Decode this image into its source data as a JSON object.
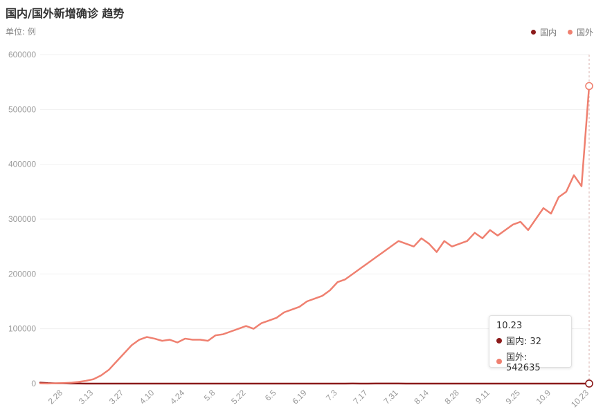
{
  "header": {
    "title": "国内/国外新增确诊 趋势",
    "unit_label": "单位: 例"
  },
  "legend": [
    {
      "name": "国内",
      "color": "#8b1a1a"
    },
    {
      "name": "国外",
      "color": "#ef8070"
    }
  ],
  "tooltip": {
    "date": "10.23",
    "rows": [
      {
        "label": "国内: 32",
        "color": "#8b1a1a"
      },
      {
        "label": "国外: 542635",
        "color": "#ef8070"
      }
    ]
  },
  "chart_data": {
    "type": "line",
    "title": "国内/国外新增确诊 趋势",
    "ylabel": "单位: 例",
    "ylim": [
      0,
      600000
    ],
    "y_ticks": [
      "0",
      "100000",
      "200000",
      "300000",
      "400000",
      "500000",
      "600000"
    ],
    "x_tick_labels": [
      "2.28",
      "3.13",
      "3.27",
      "4.10",
      "4.24",
      "5.8",
      "5.22",
      "6.5",
      "6.19",
      "7.3",
      "7.17",
      "7.31",
      "8.14",
      "8.28",
      "9.11",
      "9.25",
      "10.9",
      "10.23"
    ],
    "grid": true,
    "legend_position": "top-right",
    "x": [
      "2.18",
      "2.21",
      "2.24",
      "2.28",
      "3.2",
      "3.5",
      "3.9",
      "3.13",
      "3.16",
      "3.20",
      "3.23",
      "3.27",
      "3.30",
      "4.3",
      "4.6",
      "4.10",
      "4.13",
      "4.17",
      "4.20",
      "4.24",
      "4.27",
      "5.1",
      "5.4",
      "5.8",
      "5.11",
      "5.15",
      "5.18",
      "5.22",
      "5.25",
      "5.29",
      "6.1",
      "6.5",
      "6.8",
      "6.12",
      "6.15",
      "6.19",
      "6.22",
      "6.26",
      "6.29",
      "7.3",
      "7.6",
      "7.10",
      "7.13",
      "7.17",
      "7.20",
      "7.24",
      "7.27",
      "7.31",
      "8.3",
      "8.7",
      "8.10",
      "8.14",
      "8.17",
      "8.21",
      "8.24",
      "8.28",
      "8.31",
      "9.4",
      "9.7",
      "9.11",
      "9.14",
      "9.18",
      "9.21",
      "9.25",
      "9.28",
      "10.2",
      "10.5",
      "10.9",
      "10.12",
      "10.16",
      "10.19",
      "10.21",
      "10.23"
    ],
    "series": [
      {
        "name": "国内",
        "color": "#8b1a1a",
        "values": [
          1700,
          900,
          500,
          400,
          200,
          150,
          60,
          30,
          40,
          60,
          80,
          50,
          40,
          30,
          60,
          50,
          20,
          15,
          10,
          10,
          5,
          5,
          10,
          5,
          10,
          5,
          5,
          5,
          5,
          5,
          5,
          5,
          10,
          30,
          40,
          20,
          10,
          5,
          10,
          5,
          20,
          100,
          70,
          80,
          90,
          120,
          110,
          100,
          80,
          70,
          40,
          20,
          20,
          30,
          20,
          10,
          10,
          15,
          20,
          20,
          25,
          20,
          15,
          15,
          10,
          10,
          15,
          20,
          30,
          25,
          20,
          15,
          32
        ]
      },
      {
        "name": "国外",
        "color": "#ef8070",
        "values": [
          300,
          200,
          500,
          1000,
          1500,
          3000,
          5000,
          8000,
          15000,
          25000,
          40000,
          55000,
          70000,
          80000,
          85000,
          82000,
          78000,
          80000,
          75000,
          82000,
          80000,
          80000,
          78000,
          88000,
          90000,
          95000,
          100000,
          105000,
          100000,
          110000,
          115000,
          120000,
          130000,
          135000,
          140000,
          150000,
          155000,
          160000,
          170000,
          185000,
          190000,
          200000,
          210000,
          220000,
          230000,
          240000,
          250000,
          260000,
          255000,
          250000,
          265000,
          255000,
          240000,
          260000,
          250000,
          255000,
          260000,
          275000,
          265000,
          280000,
          270000,
          280000,
          290000,
          295000,
          280000,
          300000,
          320000,
          310000,
          340000,
          350000,
          380000,
          360000,
          542635
        ]
      }
    ]
  }
}
